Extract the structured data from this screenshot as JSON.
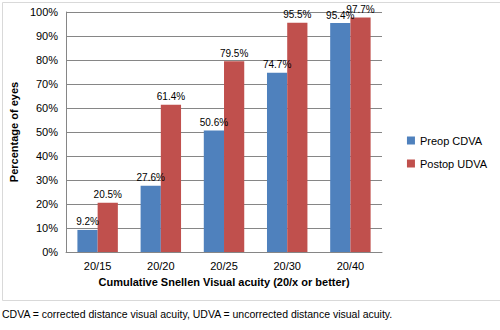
{
  "chart_data": {
    "type": "bar",
    "x_label": "Cumulative Snellen Visual acuity (20/x or better)",
    "y_label": "Percentage of eyes",
    "categories": [
      "20/15",
      "20/20",
      "20/25",
      "20/30",
      "20/40"
    ],
    "series": [
      {
        "name": "Preop CDVA",
        "color": "#4f81bd",
        "values": [
          9.2,
          27.6,
          50.6,
          74.7,
          95.4
        ],
        "value_labels": [
          "9.2%",
          "27.6%",
          "50.6%",
          "74.7%",
          "95.4%"
        ]
      },
      {
        "name": "Postop UDVA",
        "color": "#c0504d",
        "values": [
          20.5,
          61.4,
          79.5,
          95.5,
          97.7
        ],
        "value_labels": [
          "20.5%",
          "61.4%",
          "79.5%",
          "95.5%",
          "97.7%"
        ]
      }
    ],
    "ylim": [
      0,
      100
    ],
    "yticks": [
      {
        "value": 0,
        "label": "0%"
      },
      {
        "value": 10,
        "label": "10%"
      },
      {
        "value": 20,
        "label": "20%"
      },
      {
        "value": 30,
        "label": "30%"
      },
      {
        "value": 40,
        "label": "40%"
      },
      {
        "value": 50,
        "label": "50%"
      },
      {
        "value": 60,
        "label": "60%"
      },
      {
        "value": 70,
        "label": "70%"
      },
      {
        "value": 80,
        "label": "80%"
      },
      {
        "value": 90,
        "label": "90%"
      },
      {
        "value": 100,
        "label": "100%"
      }
    ],
    "grid": true,
    "legend": "right",
    "data_labels": true,
    "annotations": [
      "CDVA = corrected distance visual acuity, UDVA = uncorrected distance visual acuity."
    ]
  }
}
